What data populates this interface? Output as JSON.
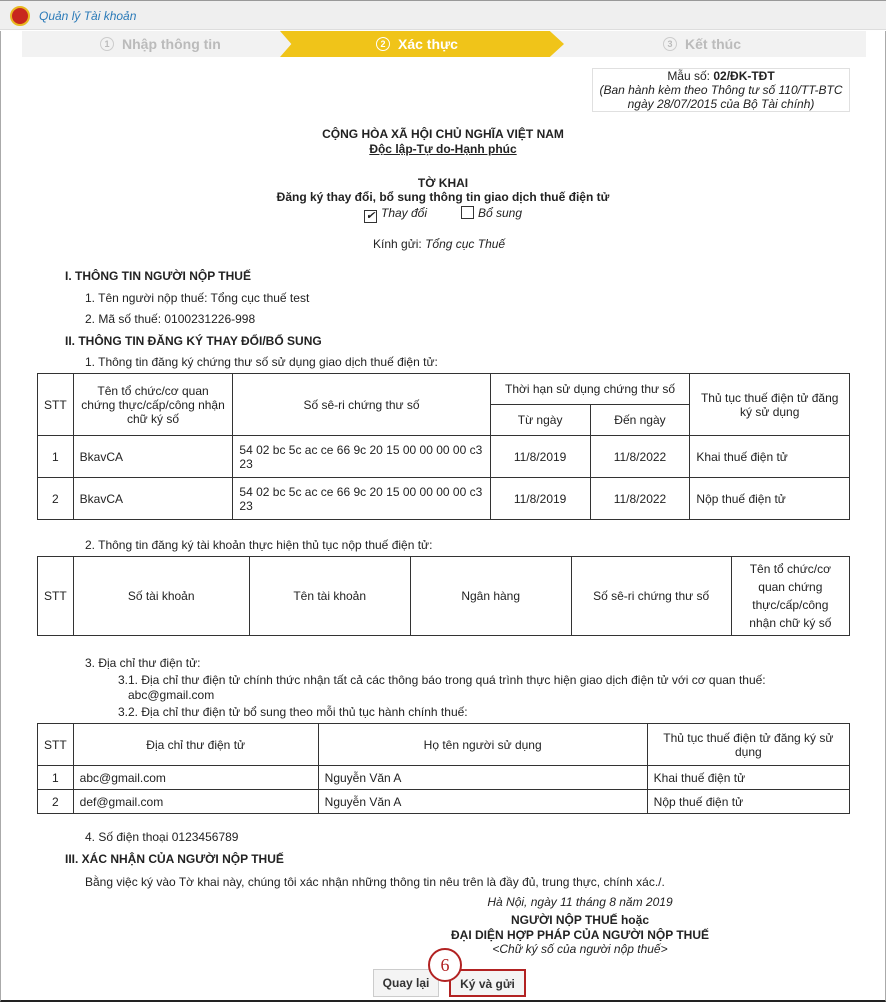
{
  "header": {
    "title": "Quản lý Tài khoản"
  },
  "steps": [
    {
      "num": "1",
      "label": "Nhập thông tin"
    },
    {
      "num": "2",
      "label": "Xác thực"
    },
    {
      "num": "3",
      "label": "Kết thúc"
    }
  ],
  "form": {
    "mau_so_label": "Mẫu số: ",
    "mau_so": "02/ĐK-TĐT",
    "ban_hanh": "(Ban hành kèm theo Thông tư số 110/TT-BTC",
    "ban_hanh2": "ngày 28/07/2015 của Bộ Tài chính)",
    "nation": "CỘNG HÒA XÃ HỘI CHỦ NGHĨA VIỆT NAM",
    "motto": "Độc lập-Tự do-Hạnh phúc",
    "title": "TỜ KHAI",
    "subtitle": "Đăng ký thay đổi, bổ sung thông tin giao dịch thuế điện tử",
    "opt_change": "Thay đổi",
    "opt_change_checked": true,
    "opt_add": "Bổ sung",
    "opt_add_checked": false,
    "kinh_gui_label": "Kính gửi: ",
    "kinh_gui": "Tổng cục Thuế",
    "s1": "I. THÔNG TIN NGƯỜI NỘP THUẾ",
    "s1_1": "1. Tên người nộp thuế: Tổng cục thuế test",
    "s1_2": "2. Mã số thuế: 0100231226-998",
    "s2": "II. THÔNG TIN ĐĂNG KÝ THAY ĐỔI/BỔ SUNG",
    "s2_1": "1. Thông tin đăng ký chứng thư số sử dụng giao dịch thuế điện tử:",
    "t1": {
      "h_stt": "STT",
      "h_org": "Tên tổ chức/cơ quan chứng thực/cấp/công nhận chữ ký số",
      "h_serial": "Số sê-ri chứng thư số",
      "h_period": "Thời hạn sử dụng chứng thư số",
      "h_from": "Từ ngày",
      "h_to": "Đến ngày",
      "h_proc": "Thủ tục thuế điện tử đăng ký sử dụng",
      "rows": [
        {
          "stt": "1",
          "org": "BkavCA",
          "serial": "54 02 bc 5c ac ce 66 9c 20 15 00 00 00 00 c3 23",
          "from": "11/8/2019",
          "to": "11/8/2022",
          "proc": "Khai thuế điện tử"
        },
        {
          "stt": "2",
          "org": "BkavCA",
          "serial": "54 02 bc 5c ac ce 66 9c 20 15 00 00 00 00 c3 23",
          "from": "11/8/2019",
          "to": "11/8/2022",
          "proc": "Nộp thuế điện tử"
        }
      ]
    },
    "s2_2": "2. Thông tin đăng ký tài khoản thực hiện thủ tục nộp thuế điện tử:",
    "t2": {
      "h": [
        "STT",
        "Số tài khoản",
        "Tên tài khoản",
        "Ngân hàng",
        "Số sê-ri chứng thư số",
        "Tên tổ chức/cơ quan chứng thực/cấp/công nhận chữ ký số"
      ]
    },
    "s2_3": "3. Địa chỉ thư điện tử:",
    "s2_3_1": "3.1. Địa chỉ thư điện tử chính thức nhận tất cả các thông báo trong quá trình thực hiện giao dịch điện tử với cơ quan thuế:",
    "s2_3_1v": "abc@gmail.com",
    "s2_3_2": "3.2. Địa chỉ thư điện tử bổ sung theo mỗi thủ tục hành chính thuế:",
    "t3": {
      "h": [
        "STT",
        "Địa chỉ thư điện tử",
        "Họ tên người sử dụng",
        "Thủ tục thuế điện tử đăng ký sử dụng"
      ],
      "rows": [
        {
          "stt": "1",
          "email": "abc@gmail.com",
          "name": "Nguyễn Văn A",
          "proc": "Khai thuế điện tử"
        },
        {
          "stt": "2",
          "email": "def@gmail.com",
          "name": "Nguyễn Văn A",
          "proc": "Nộp thuế điện tử"
        }
      ]
    },
    "s2_4": "4. Số điện thoại  0123456789",
    "s3": "III. XÁC NHẬN CỦA NGƯỜI NỘP THUẾ",
    "s3_text": "Bằng việc ký vào Tờ khai này, chúng tôi xác nhận những thông tin nêu trên là đầy đủ, trung thực, chính xác./.",
    "date": "Hà Nội, ngày 11 tháng 8 năm 2019",
    "sig1": "NGƯỜI NỘP THUẾ hoặc",
    "sig2": "ĐẠI DIỆN HỢP PHÁP CỦA NGƯỜI NỘP THUẾ",
    "sig3": "<Chữ ký số của người nộp thuế>"
  },
  "buttons": {
    "back": "Quay lại",
    "sign": "Ký và gửi",
    "callout": "6"
  },
  "colors": {
    "accent": "#f0c419",
    "callout": "#b22222",
    "title": "#2a7ab8"
  }
}
